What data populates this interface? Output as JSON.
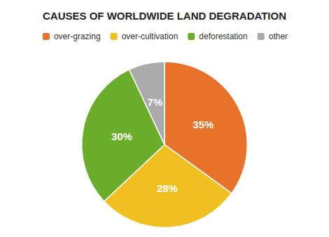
{
  "chart_data": {
    "type": "pie",
    "title": "CAUSES OF WORLDWIDE LAND DEGRADATION",
    "categories": [
      "over-grazing",
      "over-cultivation",
      "deforestation",
      "other"
    ],
    "values": [
      35,
      28,
      30,
      7
    ],
    "value_labels": [
      "35%",
      "28%",
      "30%",
      "7%"
    ],
    "colors": [
      "#E8722A",
      "#F0C020",
      "#6AAD2A",
      "#AAAAAA"
    ],
    "data_labels": true,
    "legend": "top"
  }
}
